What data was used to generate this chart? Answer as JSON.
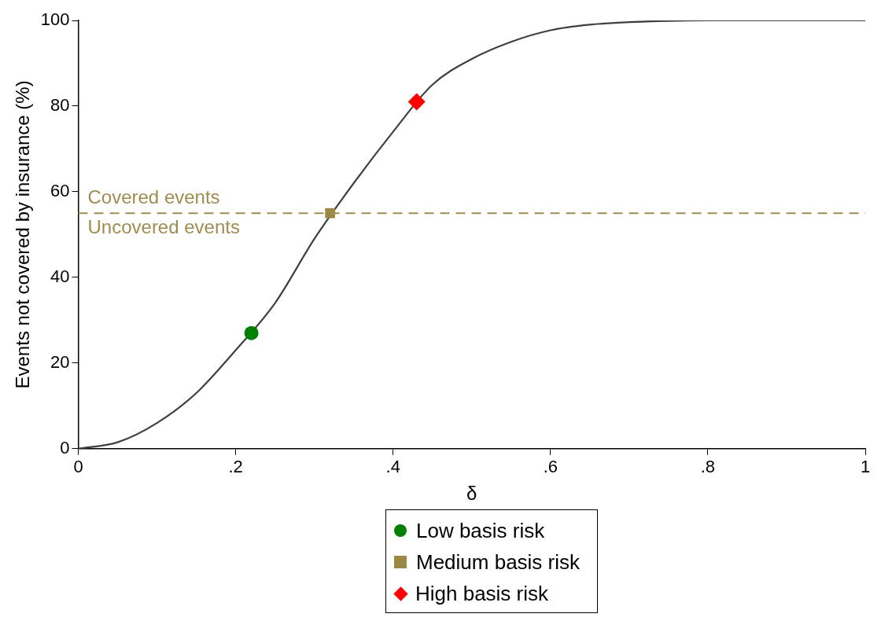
{
  "chart_data": {
    "type": "line",
    "xlabel": "δ",
    "ylabel": "Events not covered by insurance (%)",
    "xlim": [
      0,
      1
    ],
    "ylim": [
      0,
      100
    ],
    "xticks": [
      0,
      {
        "value": 0.2,
        "label": ".2"
      },
      {
        "value": 0.4,
        "label": ".4"
      },
      {
        "value": 0.6,
        "label": ".6"
      },
      {
        "value": 0.8,
        "label": ".8"
      },
      1
    ],
    "yticks": [
      0,
      20,
      40,
      60,
      80,
      100
    ],
    "grid": false,
    "legend": "bottom",
    "series": [
      {
        "color": "#404040",
        "marker": "none",
        "line_style": "solid",
        "x": [
          0,
          0.05,
          0.1,
          0.15,
          0.2,
          0.25,
          0.3,
          0.35,
          0.4,
          0.45,
          0.5,
          0.55,
          0.6,
          0.65,
          0.7,
          0.75,
          0.8,
          0.9,
          1
        ],
        "values": [
          0,
          1.5,
          6,
          13,
          23,
          34,
          49,
          62,
          74,
          85,
          91,
          95,
          97.7,
          99,
          99.6,
          99.9,
          100,
          100,
          100
        ]
      },
      {
        "type": "scatter",
        "name": "Low basis risk",
        "color": "#008000",
        "marker": "circle",
        "x": [
          0.22
        ],
        "values": [
          27
        ]
      },
      {
        "type": "scatter",
        "name": "Medium basis risk",
        "color": "#9c8845",
        "marker": "square",
        "x": [
          0.32
        ],
        "values": [
          55
        ]
      },
      {
        "type": "scatter",
        "name": "High basis risk",
        "color": "#ff0000",
        "marker": "diamond",
        "x": [
          0.43
        ],
        "values": [
          81
        ]
      }
    ],
    "ref_lines": [
      {
        "axis": "y",
        "value": 55,
        "color": "#a08c50",
        "line_style": "dashed"
      }
    ],
    "annotations": [
      "Covered events",
      "Uncovered events"
    ]
  }
}
